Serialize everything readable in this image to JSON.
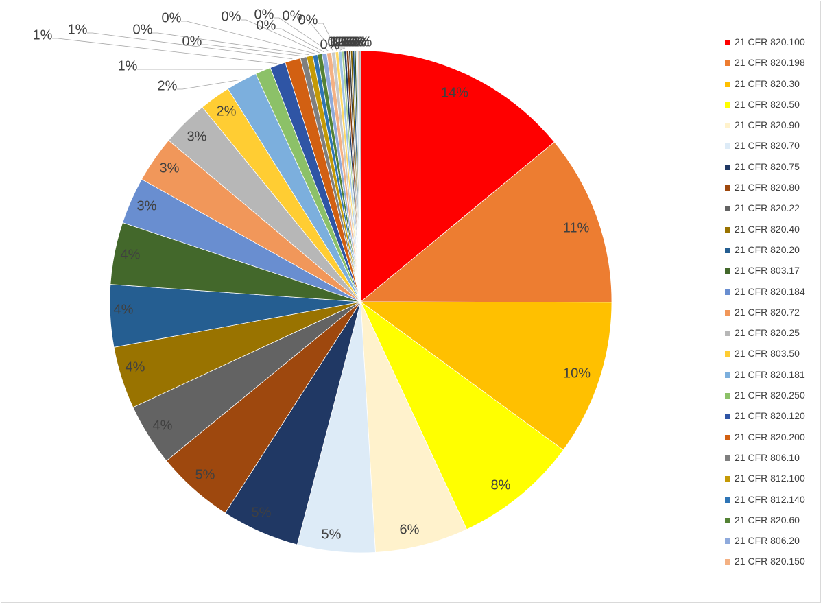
{
  "chart_data": {
    "type": "pie",
    "title": "",
    "slices": [
      {
        "name": "21 CFR 820.100",
        "value": 14,
        "label": "14%",
        "color": "#FF0000"
      },
      {
        "name": "21 CFR 820.198",
        "value": 11,
        "label": "11%",
        "color": "#ED7D31"
      },
      {
        "name": "21 CFR 820.30",
        "value": 10,
        "label": "10%",
        "color": "#FFC000"
      },
      {
        "name": "21 CFR 820.50",
        "value": 8,
        "label": "8%",
        "color": "#FFFF00"
      },
      {
        "name": "21 CFR 820.90",
        "value": 6,
        "label": "6%",
        "color": "#FFF2CC"
      },
      {
        "name": "21 CFR 820.70",
        "value": 5,
        "label": "5%",
        "color": "#DDEBF7"
      },
      {
        "name": "21 CFR 820.75",
        "value": 5,
        "label": "5%",
        "color": "#203864"
      },
      {
        "name": "21 CFR 820.80",
        "value": 5,
        "label": "5%",
        "color": "#9E480E"
      },
      {
        "name": "21 CFR 820.22",
        "value": 4,
        "label": "4%",
        "color": "#636363"
      },
      {
        "name": "21 CFR 820.40",
        "value": 4,
        "label": "4%",
        "color": "#997300"
      },
      {
        "name": "21 CFR 820.20",
        "value": 4,
        "label": "4%",
        "color": "#255E91"
      },
      {
        "name": "21 CFR 803.17",
        "value": 4,
        "label": "4%",
        "color": "#43682B"
      },
      {
        "name": "21 CFR 820.184",
        "value": 3,
        "label": "3%",
        "color": "#698ED0"
      },
      {
        "name": "21 CFR 820.72",
        "value": 3,
        "label": "3%",
        "color": "#F1975A"
      },
      {
        "name": "21 CFR 820.25",
        "value": 3,
        "label": "3%",
        "color": "#B7B7B7"
      },
      {
        "name": "21 CFR 803.50",
        "value": 2,
        "label": "2%",
        "color": "#FFCD33"
      },
      {
        "name": "21 CFR 820.181",
        "value": 2,
        "label": "2%",
        "color": "#7CAFDD"
      },
      {
        "name": "21 CFR 820.250",
        "value": 1,
        "label": "1%",
        "color": "#8CC168"
      },
      {
        "name": "21 CFR 820.120",
        "value": 1,
        "label": "1%",
        "color": "#2F55A5"
      },
      {
        "name": "21 CFR 820.200",
        "value": 1,
        "label": "1%",
        "color": "#D26012"
      },
      {
        "name": "21 CFR 806.10",
        "value": 0.4,
        "label": "0%",
        "color": "#7F7F7F"
      },
      {
        "name": "21 CFR 812.100",
        "value": 0.4,
        "label": "0%",
        "color": "#C59A06"
      },
      {
        "name": "21 CFR 812.140",
        "value": 0.3,
        "label": "0%",
        "color": "#2E75B6"
      },
      {
        "name": "21 CFR 820.60",
        "value": 0.3,
        "label": "0%",
        "color": "#548235"
      },
      {
        "name": "21 CFR 806.20",
        "value": 0.3,
        "label": "0%",
        "color": "#8FAADC"
      },
      {
        "name": "21 CFR 820.150",
        "value": 0.3,
        "label": "0%",
        "color": "#F4B183"
      },
      {
        "name": "",
        "value": 0.25,
        "label": "0%",
        "color": "#C9C9C9"
      },
      {
        "name": "",
        "value": 0.2,
        "label": "0%",
        "color": "#FFD966"
      },
      {
        "name": "",
        "value": 0.2,
        "label": "0%",
        "color": "#9DC3E6"
      },
      {
        "name": "",
        "value": 0.15,
        "label": "0%",
        "color": "#A9D18E"
      },
      {
        "name": "",
        "value": 0.15,
        "label": "0%",
        "color": "#1F3864"
      },
      {
        "name": "",
        "value": 0.15,
        "label": "0%",
        "color": "#843C0C"
      },
      {
        "name": "",
        "value": 0.12,
        "label": "0%",
        "color": "#3A3A3A"
      },
      {
        "name": "",
        "value": 0.12,
        "label": "0%",
        "color": "#7F6000"
      },
      {
        "name": "",
        "value": 0.12,
        "label": "0%",
        "color": "#1F4E79"
      },
      {
        "name": "",
        "value": 0.1,
        "label": "0%",
        "color": "#385723"
      },
      {
        "name": "",
        "value": 0.1,
        "label": "0%",
        "color": "#B4C7E7"
      },
      {
        "name": "",
        "value": 0.1,
        "label": "0%",
        "color": "#F8CBAD"
      },
      {
        "name": "",
        "value": 0.1,
        "label": "0%",
        "color": "#A5A5A5"
      }
    ],
    "legend": {
      "position": "right",
      "entries": [
        "21 CFR 820.100",
        "21 CFR 820.198",
        "21 CFR 820.30",
        "21 CFR 820.50",
        "21 CFR 820.90",
        "21 CFR 820.70",
        "21 CFR 820.75",
        "21 CFR 820.80",
        "21 CFR 820.22",
        "21 CFR 820.40",
        "21 CFR 820.20",
        "21 CFR 803.17",
        "21 CFR 820.184",
        "21 CFR 820.72",
        "21 CFR 820.25",
        "21 CFR 803.50",
        "21 CFR 820.181",
        "21 CFR 820.250",
        "21 CFR 820.120",
        "21 CFR 820.200",
        "21 CFR 806.10",
        "21 CFR 812.100",
        "21 CFR 812.140",
        "21 CFR 820.60",
        "21 CFR 806.20",
        "21 CFR 820.150"
      ]
    }
  }
}
